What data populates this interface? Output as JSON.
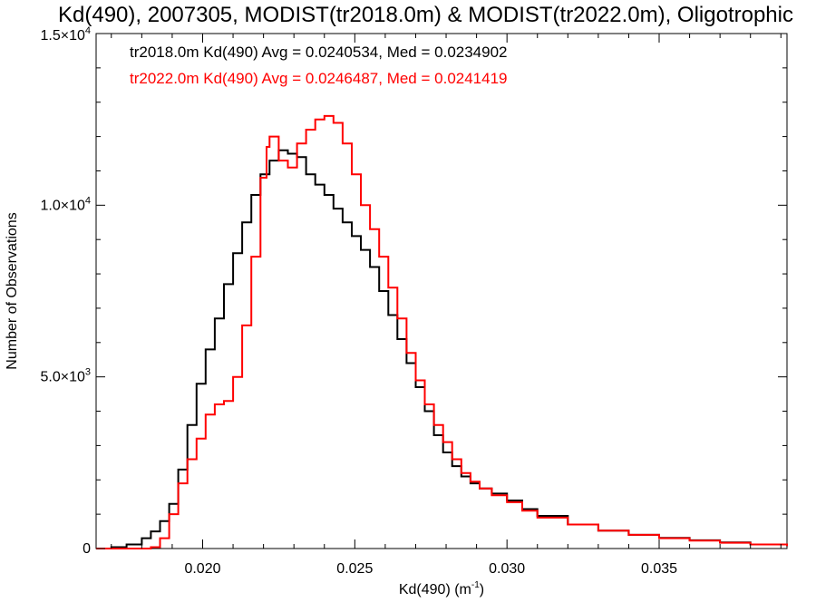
{
  "chart_data": {
    "type": "line",
    "title": "Kd(490), 2007305, MODIST(tr2018.0m) & MODIST(tr2022.0m), Oligotrophic",
    "xlabel": "Kd(490) (m",
    "xlabel_sup": "-1",
    "xlabel_close": ")",
    "ylabel": "Number of Observations",
    "xlim": [
      0.0165,
      0.0392
    ],
    "ylim": [
      0,
      15000
    ],
    "x_ticks": [
      0.02,
      0.025,
      0.03,
      0.035
    ],
    "x_tick_labels": [
      "0.020",
      "0.025",
      "0.030",
      "0.035"
    ],
    "y_ticks": [
      0,
      5000,
      10000,
      15000
    ],
    "y_tick_labels": [
      {
        "base": "0",
        "exp": ""
      },
      {
        "base": "5.0×10",
        "exp": "3"
      },
      {
        "base": "1.0×10",
        "exp": "4"
      },
      {
        "base": "1.5×10",
        "exp": "4"
      }
    ],
    "grid": false,
    "legend_placement": "top-left",
    "annotations": [
      {
        "text": "tr2018.0m Kd(490) Avg = 0.0240534, Med = 0.0234902",
        "color": "#000000"
      },
      {
        "text": "tr2022.0m Kd(490) Avg = 0.0246487, Med = 0.0241419",
        "color": "#ff0000"
      }
    ],
    "series": [
      {
        "color": "#000000",
        "x": [
          0.0165,
          0.017,
          0.0175,
          0.018,
          0.0183,
          0.0186,
          0.0189,
          0.0192,
          0.0195,
          0.0198,
          0.0201,
          0.0204,
          0.0207,
          0.021,
          0.0213,
          0.0216,
          0.0219,
          0.0222,
          0.0225,
          0.0228,
          0.0231,
          0.0234,
          0.0237,
          0.024,
          0.0243,
          0.0246,
          0.0249,
          0.0252,
          0.0255,
          0.0258,
          0.0261,
          0.0264,
          0.0267,
          0.027,
          0.0273,
          0.0276,
          0.0279,
          0.0282,
          0.0285,
          0.0288,
          0.0291,
          0.0295,
          0.03,
          0.0305,
          0.031,
          0.032,
          0.033,
          0.034,
          0.035,
          0.036,
          0.037,
          0.038,
          0.0392
        ],
        "y": [
          0,
          40,
          120,
          300,
          500,
          800,
          1300,
          2300,
          3600,
          4800,
          5800,
          6700,
          7700,
          8600,
          9500,
          10300,
          10900,
          11300,
          11600,
          11500,
          11400,
          10900,
          10600,
          10300,
          9900,
          9500,
          9100,
          8700,
          8200,
          7500,
          6800,
          6100,
          5400,
          4700,
          4000,
          3300,
          2800,
          2400,
          2100,
          1900,
          1750,
          1600,
          1400,
          1150,
          950,
          700,
          520,
          400,
          310,
          240,
          180,
          120,
          70
        ]
      },
      {
        "color": "#ff0000",
        "x": [
          0.0165,
          0.0175,
          0.0183,
          0.0186,
          0.0189,
          0.0192,
          0.0195,
          0.0198,
          0.0201,
          0.0204,
          0.0207,
          0.021,
          0.0213,
          0.0216,
          0.0219,
          0.0221,
          0.0222,
          0.0225,
          0.0228,
          0.0231,
          0.0234,
          0.0237,
          0.024,
          0.0243,
          0.0246,
          0.0249,
          0.0252,
          0.0255,
          0.0258,
          0.0261,
          0.0264,
          0.0267,
          0.027,
          0.0273,
          0.0276,
          0.0279,
          0.0282,
          0.0285,
          0.0288,
          0.0291,
          0.0295,
          0.03,
          0.0305,
          0.031,
          0.032,
          0.033,
          0.034,
          0.035,
          0.036,
          0.037,
          0.038,
          0.0392
        ],
        "y": [
          0,
          0,
          40,
          300,
          1000,
          1900,
          2600,
          3200,
          3900,
          4200,
          4300,
          5000,
          6500,
          8500,
          10800,
          11700,
          12000,
          11300,
          11100,
          11800,
          12200,
          12500,
          12600,
          12400,
          11800,
          10900,
          10000,
          9300,
          8500,
          7600,
          6700,
          5700,
          4900,
          4200,
          3600,
          3100,
          2600,
          2200,
          1950,
          1750,
          1550,
          1350,
          1100,
          900,
          700,
          520,
          400,
          300,
          230,
          170,
          120,
          70
        ]
      }
    ]
  }
}
